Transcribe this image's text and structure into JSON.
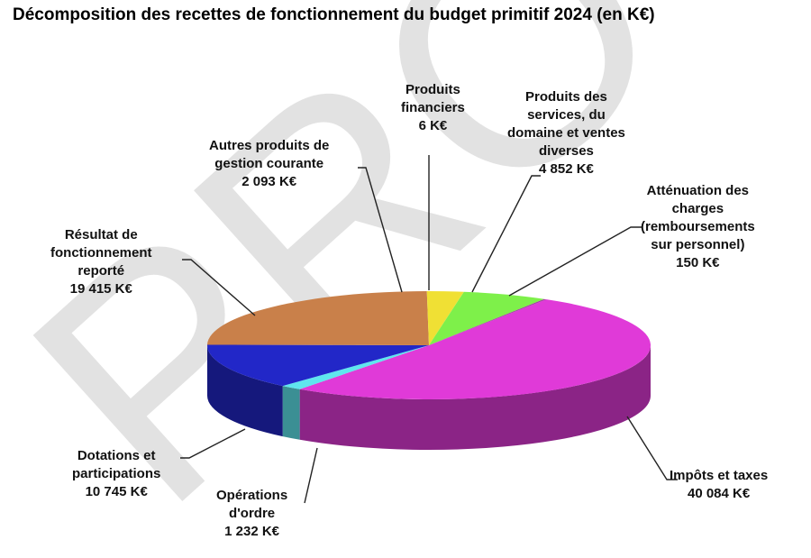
{
  "title": "Décomposition des recettes de fonctionnement du budget primitif 2024 (en K€)",
  "watermark": "PRO",
  "colors": {
    "impots": "#e03ad8",
    "operations": "#5fe6ee",
    "dotations": "#2227c8",
    "resultat": "#c9804a",
    "autres": "#f0e034",
    "financiers": "#f0e034",
    "services": "#7ef04a",
    "attenuation": "#a13ea0"
  },
  "chart_data": {
    "type": "pie",
    "title": "Décomposition des recettes de fonctionnement du budget primitif 2024 (en K€)",
    "unit": "K€",
    "slices": [
      {
        "name": "Impôts et taxes",
        "value": 40084,
        "label": "40 084 K€"
      },
      {
        "name": "Opérations d'ordre",
        "value": 1232,
        "label": "1 232 K€"
      },
      {
        "name": "Dotations et participations",
        "value": 10745,
        "label": "10 745 K€"
      },
      {
        "name": "Résultat de fonctionnement reporté",
        "value": 19415,
        "label": "19 415 K€"
      },
      {
        "name": "Autres produits de gestion courante",
        "value": 2093,
        "label": "2 093 K€"
      },
      {
        "name": "Produits financiers",
        "value": 6,
        "label": "6 K€"
      },
      {
        "name": "Produits des services, du domaine et ventes diverses",
        "value": 4852,
        "label": "4 852 K€"
      },
      {
        "name": "Atténuation des charges (remboursements sur personnel)",
        "value": 150,
        "label": "150 K€"
      }
    ]
  },
  "labels": {
    "impots": {
      "lines": [
        "Impôts et taxes"
      ],
      "value": "40 084 K€"
    },
    "operations": {
      "lines": [
        "Opérations",
        "d'ordre"
      ],
      "value": "1 232 K€"
    },
    "dotations": {
      "lines": [
        "Dotations et",
        "participations"
      ],
      "value": "10 745 K€"
    },
    "resultat": {
      "lines": [
        "Résultat de",
        "fonctionnement",
        "reporté"
      ],
      "value": "19 415 K€"
    },
    "autres": {
      "lines": [
        "Autres produits de",
        "gestion courante"
      ],
      "value": "2 093 K€"
    },
    "financiers": {
      "lines": [
        "Produits",
        "financiers"
      ],
      "value": "6 K€"
    },
    "services": {
      "lines": [
        "Produits des",
        "services, du",
        "domaine et ventes",
        "diverses"
      ],
      "value": "4 852 K€"
    },
    "attenuation": {
      "lines": [
        "Atténuation des",
        "charges",
        "(remboursements",
        "sur personnel)"
      ],
      "value": "150 K€"
    }
  }
}
